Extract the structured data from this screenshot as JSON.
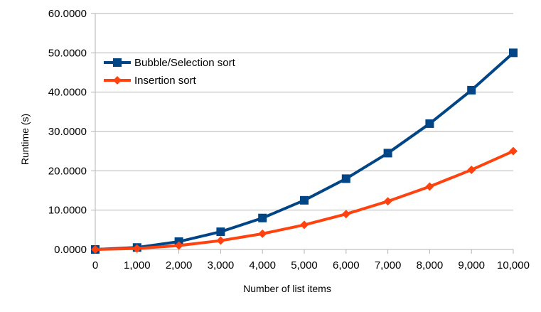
{
  "chart_data": {
    "type": "line",
    "title": "",
    "xlabel": "Number of list items",
    "ylabel": "Runtime (s)",
    "x": [
      0,
      1000,
      2000,
      3000,
      4000,
      5000,
      6000,
      7000,
      8000,
      9000,
      10000
    ],
    "x_tick_labels": [
      "0",
      "1,000",
      "2,000",
      "3,000",
      "4,000",
      "5,000",
      "6,000",
      "7,000",
      "8,000",
      "9,000",
      "10,000"
    ],
    "y_tick_labels": [
      "0.0000",
      "10.0000",
      "20.0000",
      "30.0000",
      "40.0000",
      "50.0000",
      "60.0000"
    ],
    "y_ticks": [
      0,
      10,
      20,
      30,
      40,
      50,
      60
    ],
    "xlim": [
      0,
      10000
    ],
    "ylim": [
      0,
      60
    ],
    "grid": "horizontal",
    "legend_position": "top-left",
    "series": [
      {
        "name": "Bubble/Selection sort",
        "color": "#004586",
        "marker": "square",
        "values": [
          0,
          0.5,
          2.0,
          4.5,
          8.0,
          12.5,
          18.0,
          24.5,
          32.0,
          40.5,
          50.0
        ]
      },
      {
        "name": "Insertion sort",
        "color": "#ff420e",
        "marker": "diamond",
        "values": [
          0,
          0.25,
          1.0,
          2.25,
          4.0,
          6.25,
          9.0,
          12.25,
          16.0,
          20.25,
          25.0
        ]
      }
    ]
  }
}
